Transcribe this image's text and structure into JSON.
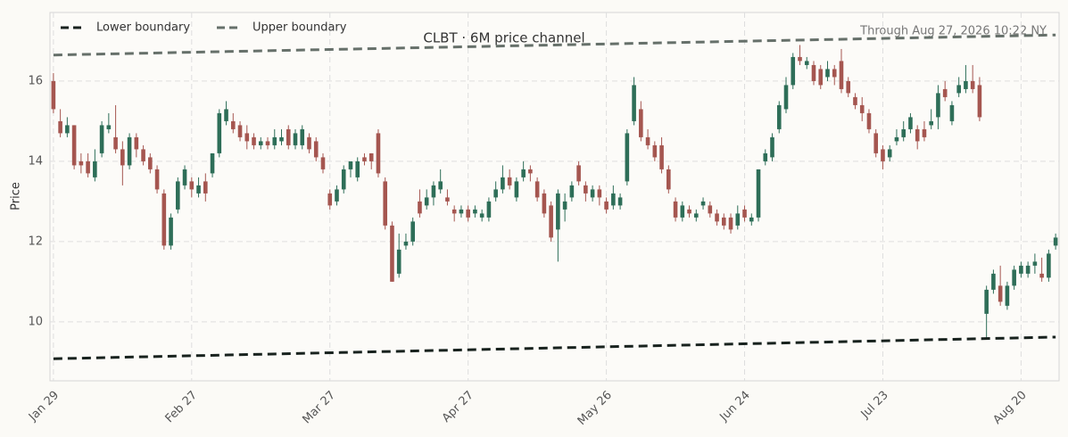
{
  "chart_data": {
    "type": "candlestick",
    "title": "CLBT  ·  6M price channel",
    "annotation": "Through Aug 27, 2026 10:22 NY",
    "y_label": "Price",
    "categories": [
      "Jan 29",
      null,
      null,
      null,
      null,
      null,
      null,
      null,
      null,
      null,
      null,
      null,
      null,
      null,
      null,
      null,
      null,
      null,
      null,
      null,
      "Feb 27",
      null,
      null,
      null,
      null,
      null,
      null,
      null,
      null,
      null,
      null,
      null,
      null,
      null,
      null,
      null,
      null,
      null,
      null,
      null,
      "Mar 27",
      null,
      null,
      null,
      null,
      null,
      null,
      null,
      null,
      null,
      null,
      null,
      null,
      null,
      null,
      null,
      null,
      null,
      null,
      null,
      "Apr 27",
      null,
      null,
      null,
      null,
      null,
      null,
      null,
      null,
      null,
      null,
      null,
      null,
      null,
      null,
      null,
      null,
      null,
      null,
      null,
      "May 26",
      null,
      null,
      null,
      null,
      null,
      null,
      null,
      null,
      null,
      null,
      null,
      null,
      null,
      null,
      null,
      null,
      null,
      null,
      null,
      "Jun 24",
      null,
      null,
      null,
      null,
      null,
      null,
      null,
      null,
      null,
      null,
      null,
      null,
      null,
      null,
      null,
      null,
      null,
      null,
      null,
      "Jul 23",
      null,
      null,
      null,
      null,
      null,
      null,
      null,
      null,
      null,
      null,
      null,
      null,
      null,
      null,
      null,
      null,
      null,
      null,
      null,
      "Aug 20",
      null,
      null,
      null,
      null,
      null
    ],
    "open": [
      16.0,
      15.0,
      14.7,
      14.9,
      14.0,
      14.0,
      13.6,
      14.2,
      14.8,
      14.6,
      14.3,
      13.9,
      14.6,
      14.3,
      14.1,
      13.8,
      13.2,
      11.9,
      12.8,
      13.4,
      13.5,
      13.2,
      13.5,
      13.7,
      14.2,
      15.0,
      15.0,
      14.9,
      14.7,
      14.6,
      14.4,
      14.5,
      14.4,
      14.5,
      14.8,
      14.4,
      14.4,
      14.6,
      14.5,
      14.1,
      13.2,
      13.0,
      13.3,
      13.8,
      13.6,
      14.1,
      14.2,
      14.7,
      13.5,
      12.4,
      11.2,
      11.9,
      12.0,
      13.0,
      12.9,
      13.1,
      13.3,
      13.1,
      12.8,
      12.7,
      12.8,
      12.7,
      12.6,
      12.6,
      13.1,
      13.3,
      13.6,
      13.1,
      13.6,
      13.8,
      13.5,
      13.2,
      12.9,
      12.3,
      12.8,
      13.1,
      13.9,
      13.4,
      13.1,
      13.3,
      13.0,
      12.9,
      12.9,
      13.5,
      15.0,
      15.3,
      14.6,
      14.4,
      14.4,
      13.8,
      13.0,
      12.6,
      12.8,
      12.6,
      12.9,
      12.9,
      12.7,
      12.6,
      12.6,
      12.4,
      12.8,
      12.5,
      12.6,
      14.0,
      14.1,
      14.8,
      15.3,
      15.9,
      16.6,
      16.4,
      16.4,
      16.3,
      16.1,
      16.3,
      16.5,
      16.0,
      15.6,
      15.4,
      15.2,
      14.7,
      14.3,
      14.1,
      14.5,
      14.6,
      14.8,
      14.8,
      14.8,
      14.9,
      15.1,
      15.8,
      15.0,
      15.7,
      15.8,
      16.0,
      15.9,
      10.2,
      10.8,
      10.9,
      10.4,
      10.9,
      11.2,
      11.2,
      11.4,
      11.2,
      11.1,
      11.9
    ],
    "high": [
      16.2,
      15.3,
      15.1,
      14.9,
      14.2,
      14.2,
      14.3,
      15.0,
      15.2,
      15.4,
      14.5,
      14.7,
      14.7,
      14.4,
      14.2,
      13.9,
      13.3,
      12.7,
      13.6,
      13.9,
      13.6,
      13.6,
      13.7,
      14.2,
      15.3,
      15.5,
      15.2,
      15.0,
      14.9,
      14.7,
      14.6,
      14.6,
      14.8,
      14.8,
      14.9,
      14.8,
      14.9,
      14.7,
      14.6,
      14.2,
      13.3,
      13.4,
      13.9,
      14.0,
      14.1,
      14.2,
      14.2,
      14.8,
      13.6,
      12.5,
      12.2,
      12.2,
      12.6,
      13.3,
      13.3,
      13.5,
      13.8,
      13.3,
      12.9,
      12.9,
      12.9,
      12.9,
      12.8,
      13.1,
      13.5,
      13.9,
      13.8,
      13.6,
      14.0,
      13.9,
      13.6,
      13.3,
      13.0,
      13.3,
      13.2,
      13.5,
      14.0,
      13.5,
      13.4,
      13.4,
      13.1,
      13.4,
      13.2,
      14.8,
      16.1,
      15.5,
      14.8,
      14.5,
      14.6,
      13.9,
      13.1,
      13.0,
      12.9,
      12.8,
      13.1,
      13.0,
      12.8,
      12.7,
      12.7,
      12.9,
      12.9,
      12.7,
      13.8,
      14.3,
      14.7,
      15.5,
      16.1,
      16.7,
      16.9,
      16.6,
      16.5,
      16.4,
      16.5,
      16.4,
      16.8,
      16.1,
      15.7,
      15.6,
      15.3,
      14.8,
      14.4,
      14.4,
      14.8,
      15.0,
      15.2,
      14.9,
      15.0,
      15.3,
      15.9,
      16.0,
      15.5,
      16.1,
      16.4,
      16.4,
      16.1,
      10.9,
      11.3,
      11.4,
      11.0,
      11.4,
      11.5,
      11.5,
      11.7,
      11.6,
      11.8,
      12.2
    ],
    "low": [
      15.2,
      14.6,
      14.6,
      13.8,
      13.7,
      13.6,
      13.5,
      14.1,
      14.7,
      14.2,
      13.4,
      13.8,
      14.1,
      13.9,
      13.7,
      13.2,
      11.8,
      11.8,
      12.7,
      13.3,
      13.1,
      13.1,
      13.0,
      13.6,
      14.1,
      14.9,
      14.7,
      14.5,
      14.3,
      14.3,
      14.3,
      14.3,
      14.3,
      14.4,
      14.3,
      14.3,
      14.3,
      14.2,
      14.0,
      13.7,
      12.8,
      12.9,
      13.2,
      13.6,
      13.5,
      13.9,
      13.8,
      13.6,
      12.3,
      11.0,
      11.1,
      11.8,
      11.9,
      12.6,
      12.8,
      12.9,
      13.2,
      12.9,
      12.5,
      12.6,
      12.5,
      12.6,
      12.5,
      12.5,
      13.0,
      13.2,
      13.3,
      13.0,
      13.5,
      13.5,
      13.0,
      12.6,
      12.0,
      11.5,
      12.5,
      13.0,
      13.4,
      13.0,
      13.0,
      12.9,
      12.7,
      12.8,
      12.8,
      13.4,
      14.9,
      14.5,
      14.3,
      14.0,
      13.7,
      13.2,
      12.5,
      12.5,
      12.6,
      12.5,
      12.8,
      12.6,
      12.4,
      12.3,
      12.2,
      12.3,
      12.5,
      12.4,
      12.5,
      13.9,
      14.0,
      14.7,
      15.2,
      15.8,
      16.4,
      16.3,
      15.9,
      15.8,
      16.0,
      15.9,
      15.7,
      15.6,
      15.3,
      15.0,
      14.7,
      14.1,
      13.8,
      14.0,
      14.4,
      14.5,
      14.7,
      14.3,
      14.5,
      14.8,
      14.8,
      15.5,
      14.9,
      15.6,
      15.7,
      15.7,
      15.0,
      9.6,
      10.7,
      10.4,
      10.3,
      10.8,
      11.1,
      11.1,
      11.2,
      11.0,
      11.0,
      11.8
    ],
    "close": [
      15.3,
      14.7,
      14.9,
      13.9,
      13.9,
      13.7,
      14.0,
      14.9,
      14.9,
      14.3,
      13.9,
      14.6,
      14.3,
      14.0,
      13.8,
      13.3,
      11.9,
      12.6,
      13.5,
      13.8,
      13.3,
      13.4,
      13.2,
      14.2,
      15.2,
      15.3,
      14.8,
      14.6,
      14.5,
      14.4,
      14.5,
      14.4,
      14.6,
      14.6,
      14.4,
      14.7,
      14.8,
      14.3,
      14.1,
      13.8,
      12.9,
      13.3,
      13.8,
      14.0,
      14.0,
      14.0,
      14.0,
      13.7,
      12.4,
      11.0,
      11.8,
      12.0,
      12.5,
      12.7,
      13.1,
      13.4,
      13.5,
      13.0,
      12.7,
      12.8,
      12.6,
      12.8,
      12.7,
      13.0,
      13.3,
      13.6,
      13.4,
      13.5,
      13.8,
      13.7,
      13.1,
      12.7,
      12.1,
      13.2,
      13.0,
      13.4,
      13.5,
      13.2,
      13.3,
      13.1,
      12.8,
      13.2,
      13.1,
      14.7,
      15.9,
      14.6,
      14.4,
      14.1,
      13.8,
      13.3,
      12.6,
      12.9,
      12.7,
      12.7,
      13.0,
      12.7,
      12.5,
      12.4,
      12.3,
      12.7,
      12.6,
      12.6,
      13.8,
      14.2,
      14.6,
      15.4,
      15.9,
      16.6,
      16.5,
      16.5,
      16.0,
      15.9,
      16.3,
      16.1,
      15.8,
      15.7,
      15.4,
      15.2,
      14.8,
      14.2,
      14.0,
      14.3,
      14.6,
      14.8,
      15.1,
      14.5,
      14.6,
      15.0,
      15.7,
      15.6,
      15.4,
      15.9,
      16.0,
      15.8,
      15.1,
      10.8,
      11.2,
      10.5,
      10.9,
      11.3,
      11.4,
      11.4,
      11.5,
      11.1,
      11.7,
      12.1
    ],
    "up_color": "#2e6e58",
    "down_color": "#a55650",
    "lines": [
      {
        "name": "Lower boundary",
        "color": "#18221e",
        "dashed": true,
        "values": [
          9.08,
          9.62
        ]
      },
      {
        "name": "Upper boundary",
        "color": "#66706a",
        "dashed": true,
        "values": [
          16.65,
          17.15
        ]
      }
    ],
    "ylim": [
      8.53,
      17.71
    ],
    "yticks": [
      10,
      12,
      14,
      16
    ],
    "grid": true,
    "legend": "upper left"
  }
}
